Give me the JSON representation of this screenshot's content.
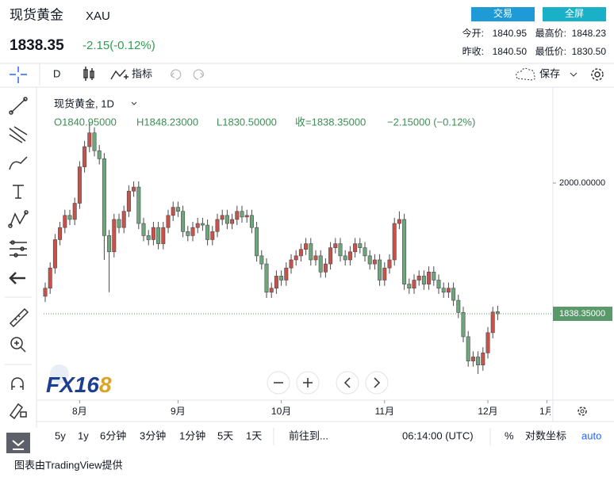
{
  "header": {
    "title": "现货黄金",
    "symbol": "XAU",
    "price": "1838.35",
    "change": "-2.15(-0.12%)",
    "buttons": [
      "交易",
      "全屏"
    ],
    "stats": [
      [
        "今开:",
        "1840.95",
        "最高价:",
        "1848.23"
      ],
      [
        "昨收:",
        "1840.50",
        "最低价:",
        "1830.50"
      ]
    ]
  },
  "toolbar": {
    "interval": "D",
    "indicators": "指标",
    "save": "保存"
  },
  "legend": {
    "name": "现货黄金, 1D",
    "ohlc": [
      "O1840.95000",
      "H1848.23000",
      "L1830.50000",
      "收=1838.35000",
      "−2.15000 (−0.12%)"
    ]
  },
  "logo": [
    "FX16",
    "8"
  ],
  "bottom_bar": {
    "ranges": [
      "5y",
      "1y",
      "6分钟",
      "3分钟",
      "1分钟",
      "5天",
      "1天"
    ],
    "goto": "前往到...",
    "time": "06:14:00 (UTC)",
    "percent": "%",
    "log": "对数坐标",
    "auto": "auto"
  },
  "footer": "图表由TradingView提供",
  "chart_data": {
    "type": "candlestick",
    "up_color": "#c8514a",
    "down_color": "#6fa57c",
    "categories": [
      null,
      null,
      null,
      null,
      null,
      null,
      null,
      "8月",
      null,
      null,
      null,
      null,
      null,
      null,
      null,
      null,
      null,
      null,
      null,
      null,
      null,
      null,
      null,
      null,
      null,
      null,
      null,
      "9月",
      null,
      null,
      null,
      null,
      null,
      null,
      null,
      null,
      null,
      null,
      null,
      null,
      null,
      null,
      null,
      null,
      null,
      null,
      null,
      null,
      "10月",
      null,
      null,
      null,
      null,
      null,
      null,
      null,
      null,
      null,
      null,
      null,
      null,
      null,
      null,
      null,
      null,
      null,
      null,
      null,
      null,
      "11月",
      null,
      null,
      null,
      null,
      null,
      null,
      null,
      null,
      null,
      null,
      null,
      null,
      null,
      null,
      null,
      null,
      null,
      null,
      null,
      null,
      "12月",
      null,
      null,
      null,
      null,
      null,
      null,
      null,
      null,
      null,
      null,
      null,
      "1月"
    ],
    "open": [
      1860,
      1870,
      1895,
      1930,
      1945,
      1960,
      1955,
      1975,
      2020,
      2045,
      2062,
      2040,
      2030,
      1935,
      1915,
      1955,
      1945,
      1965,
      1990,
      1995,
      1950,
      1935,
      1930,
      1945,
      1925,
      1945,
      1960,
      1970,
      1965,
      1940,
      1935,
      1945,
      1950,
      1948,
      1930,
      1940,
      1955,
      1960,
      1950,
      1955,
      1965,
      1958,
      1960,
      1945,
      1910,
      1900,
      1865,
      1870,
      1885,
      1880,
      1895,
      1905,
      1910,
      1918,
      1925,
      1905,
      1910,
      1890,
      1900,
      1920,
      1925,
      1910,
      1905,
      1915,
      1925,
      1920,
      1910,
      1900,
      1905,
      1880,
      1895,
      1905,
      1950,
      1955,
      1875,
      1870,
      1880,
      1885,
      1875,
      1890,
      1880,
      1870,
      1865,
      1870,
      1855,
      1840,
      1810,
      1780,
      1785,
      1775,
      1790,
      1815,
      1840.95,
      null,
      null,
      null,
      null,
      null,
      null,
      null,
      null,
      null,
      null
    ],
    "high": [
      1877,
      1902,
      1937,
      1952,
      1967,
      1967,
      1982,
      2027,
      2052,
      2075,
      2069,
      2047,
      2037,
      1942,
      1962,
      1962,
      1972,
      1997,
      2002,
      2002,
      1957,
      1942,
      1952,
      1952,
      1952,
      1967,
      1977,
      1977,
      1972,
      1947,
      1952,
      1957,
      1957,
      1955,
      1947,
      1962,
      1967,
      1967,
      1962,
      1972,
      1972,
      1967,
      1967,
      1952,
      1917,
      1907,
      1877,
      1892,
      1892,
      1902,
      1912,
      1917,
      1925,
      1932,
      1932,
      1917,
      1917,
      1907,
      1927,
      1932,
      1932,
      1917,
      1922,
      1932,
      1932,
      1927,
      1917,
      1912,
      1912,
      1902,
      1912,
      1957,
      1965,
      1962,
      1882,
      1887,
      1892,
      1892,
      1897,
      1897,
      1887,
      1877,
      1877,
      1877,
      1862,
      1847,
      1817,
      1792,
      1792,
      1797,
      1822,
      1847,
      1848.23,
      null,
      null,
      null,
      null,
      null,
      null,
      null,
      null,
      null,
      null
    ],
    "low": [
      1853,
      1863,
      1888,
      1923,
      1938,
      1948,
      1948,
      1968,
      2013,
      2038,
      2033,
      2023,
      1905,
      1865,
      1908,
      1938,
      1938,
      1958,
      1983,
      1943,
      1928,
      1923,
      1923,
      1918,
      1918,
      1938,
      1953,
      1958,
      1933,
      1928,
      1928,
      1938,
      1941,
      1923,
      1923,
      1933,
      1948,
      1943,
      1943,
      1948,
      1951,
      1951,
      1938,
      1903,
      1893,
      1858,
      1858,
      1863,
      1873,
      1873,
      1888,
      1898,
      1903,
      1911,
      1898,
      1898,
      1883,
      1883,
      1893,
      1913,
      1903,
      1898,
      1898,
      1908,
      1913,
      1903,
      1893,
      1893,
      1873,
      1873,
      1888,
      1898,
      1943,
      1868,
      1863,
      1863,
      1873,
      1868,
      1868,
      1873,
      1863,
      1858,
      1858,
      1848,
      1833,
      1803,
      1773,
      1773,
      1764,
      1768,
      1783,
      1808,
      1830.5,
      null,
      null,
      null,
      null,
      null,
      null,
      null,
      null,
      null,
      null
    ],
    "close": [
      1870,
      1895,
      1930,
      1945,
      1960,
      1955,
      1975,
      2020,
      2045,
      2062,
      2040,
      2030,
      1935,
      1915,
      1955,
      1945,
      1965,
      1990,
      1995,
      1950,
      1935,
      1930,
      1945,
      1925,
      1945,
      1960,
      1970,
      1965,
      1940,
      1935,
      1945,
      1950,
      1948,
      1930,
      1940,
      1955,
      1960,
      1950,
      1955,
      1965,
      1958,
      1960,
      1945,
      1910,
      1900,
      1865,
      1870,
      1885,
      1880,
      1895,
      1905,
      1910,
      1918,
      1925,
      1905,
      1910,
      1890,
      1900,
      1920,
      1925,
      1910,
      1905,
      1915,
      1925,
      1920,
      1910,
      1900,
      1905,
      1880,
      1895,
      1905,
      1950,
      1955,
      1875,
      1870,
      1880,
      1885,
      1875,
      1890,
      1880,
      1870,
      1865,
      1870,
      1855,
      1840,
      1810,
      1780,
      1785,
      1775,
      1790,
      1815,
      1840.5,
      1838.35,
      null,
      null,
      null,
      null,
      null,
      null,
      null,
      null,
      null,
      null
    ],
    "ylim": [
      1731.6,
      2110.7
    ],
    "yticks": [
      {
        "value": 2000,
        "label": "2000.00000"
      }
    ],
    "last_price": {
      "value": 1838.35,
      "label": "1838.35000"
    },
    "last_price_color": "#5a9a6a"
  }
}
